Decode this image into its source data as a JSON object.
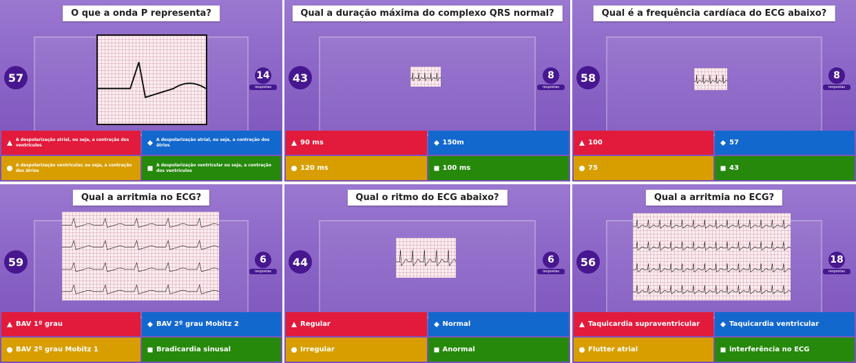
{
  "panels": [
    {
      "question": "O que a onda P representa?",
      "timer": 57,
      "responses": 14,
      "responses_label": "respostas",
      "answers": [
        "A despolarização atrial, ou seja, a contração dos ventrículos",
        "A despolarização atrial, ou seja, a contração dos átrios",
        "A despolarização ventricular, ou seja, a contração dos átrios",
        "A despolarização ventricular ou seja, a contração dos ventrículos"
      ]
    },
    {
      "question": "Qual a duração máxima do complexo QRS normal?",
      "timer": 43,
      "responses": 8,
      "responses_label": "respostas",
      "answers": [
        "90 ms",
        "150m",
        "120 ms",
        "100 ms"
      ]
    },
    {
      "question": "Qual é a frequência cardíaca do ECG abaixo?",
      "timer": 58,
      "responses": 8,
      "responses_label": "respostas",
      "answers": [
        "100",
        "57",
        "75",
        "43"
      ]
    },
    {
      "question": "Qual a arritmia no ECG?",
      "timer": 59,
      "responses": 6,
      "responses_label": "respostas",
      "answers": [
        "BAV 1º grau",
        "BAV 2º grau Mobitz 2",
        "BAV 2º grau Mobitz 1",
        "Bradicardia sinusal"
      ]
    },
    {
      "question": "Qual o ritmo do ECG abaixo?",
      "timer": 44,
      "responses": 6,
      "responses_label": "respostas",
      "answers": [
        "Regular",
        "Normal",
        "Irregular",
        "Anormal"
      ]
    },
    {
      "question": "Qual a arritmia no ECG?",
      "timer": 56,
      "responses": 18,
      "responses_label": "respostas",
      "answers": [
        "Taquicardia supraventricular",
        "Taquicardia ventricular",
        "Flutter atrial",
        "interferência no ECG"
      ]
    }
  ]
}
